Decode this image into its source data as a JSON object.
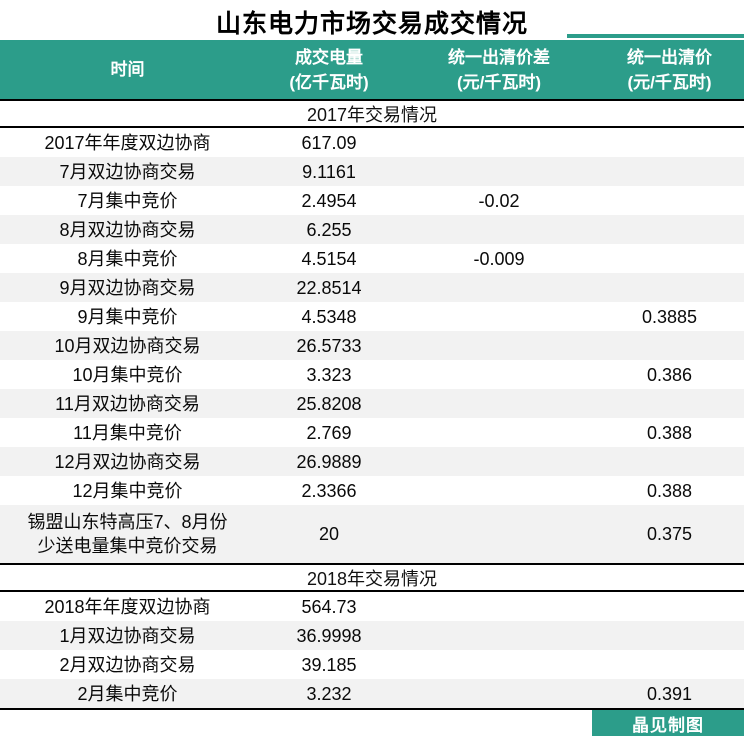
{
  "title": "山东电力市场交易成交情况",
  "header": {
    "columns": [
      {
        "title": "时间",
        "unit": ""
      },
      {
        "title": "成交电量",
        "unit": "(亿千瓦时)"
      },
      {
        "title": "统一出清价差",
        "unit": "(元/千瓦时)"
      },
      {
        "title": "统一出清价",
        "unit": "(元/千瓦时)"
      }
    ]
  },
  "chart_data": {
    "type": "table",
    "title": "山东电力市场交易成交情况",
    "columns": [
      "时间",
      "成交电量(亿千瓦时)",
      "统一出清价差(元/千瓦时)",
      "统一出清价(元/千瓦时)"
    ],
    "sections": [
      {
        "header": "2017年交易情况",
        "rows": [
          {
            "time": "2017年年度双边协商",
            "time2": "",
            "volume": "617.09",
            "price_diff": "",
            "clearing_price": ""
          },
          {
            "time": "7月双边协商交易",
            "time2": "",
            "volume": "9.1161",
            "price_diff": "",
            "clearing_price": ""
          },
          {
            "time": "7月集中竞价",
            "time2": "",
            "volume": "2.4954",
            "price_diff": "-0.02",
            "clearing_price": ""
          },
          {
            "time": "8月双边协商交易",
            "time2": "",
            "volume": "6.255",
            "price_diff": "",
            "clearing_price": ""
          },
          {
            "time": "8月集中竞价",
            "time2": "",
            "volume": "4.5154",
            "price_diff": "-0.009",
            "clearing_price": ""
          },
          {
            "time": "9月双边协商交易",
            "time2": "",
            "volume": "22.8514",
            "price_diff": "",
            "clearing_price": ""
          },
          {
            "time": "9月集中竞价",
            "time2": "",
            "volume": "4.5348",
            "price_diff": "",
            "clearing_price": "0.3885"
          },
          {
            "time": "10月双边协商交易",
            "time2": "",
            "volume": "26.5733",
            "price_diff": "",
            "clearing_price": ""
          },
          {
            "time": "10月集中竞价",
            "time2": "",
            "volume": "3.323",
            "price_diff": "",
            "clearing_price": "0.386"
          },
          {
            "time": "11月双边协商交易",
            "time2": "",
            "volume": "25.8208",
            "price_diff": "",
            "clearing_price": ""
          },
          {
            "time": "11月集中竞价",
            "time2": "",
            "volume": "2.769",
            "price_diff": "",
            "clearing_price": "0.388"
          },
          {
            "time": "12月双边协商交易",
            "time2": "",
            "volume": "26.9889",
            "price_diff": "",
            "clearing_price": ""
          },
          {
            "time": "12月集中竞价",
            "time2": "",
            "volume": "2.3366",
            "price_diff": "",
            "clearing_price": "0.388"
          },
          {
            "time": "锡盟山东特高压7、8月份",
            "time2": "少送电量集中竞价交易",
            "volume": "20",
            "price_diff": "",
            "clearing_price": "0.375"
          }
        ]
      },
      {
        "header": "2018年交易情况",
        "rows": [
          {
            "time": "2018年年度双边协商",
            "time2": "",
            "volume": "564.73",
            "price_diff": "",
            "clearing_price": ""
          },
          {
            "time": "1月双边协商交易",
            "time2": "",
            "volume": "36.9998",
            "price_diff": "",
            "clearing_price": ""
          },
          {
            "time": "2月双边协商交易",
            "time2": "",
            "volume": "39.185",
            "price_diff": "",
            "clearing_price": ""
          },
          {
            "time": "2月集中竞价",
            "time2": "",
            "volume": "3.232",
            "price_diff": "",
            "clearing_price": "0.391"
          }
        ]
      }
    ]
  },
  "footer": {
    "credit": "晶见制图"
  },
  "colors": {
    "accent_teal": "#2C9D8A",
    "row_alt": "#F2F2F2",
    "border": "#000000"
  }
}
